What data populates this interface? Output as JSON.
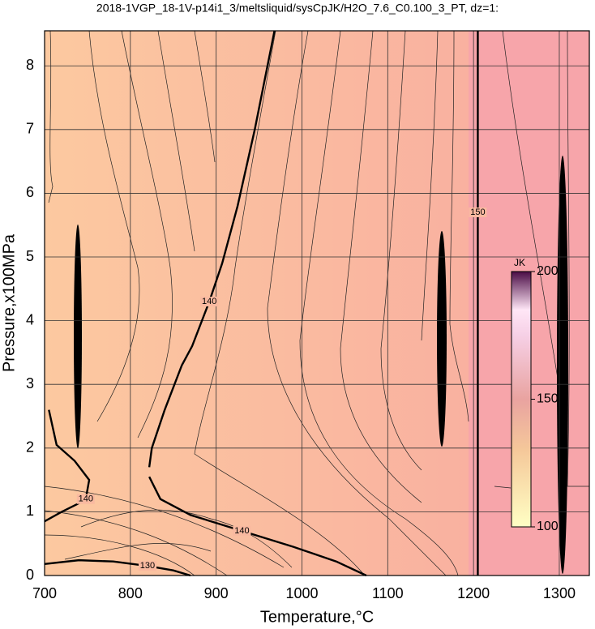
{
  "chart_data": {
    "type": "contour",
    "title": "2018-1VGP_18-1V-p14i1_3/meltsliquid/sysCpJK/H2O_7.6_C0.100_3_PT, dz=1:",
    "x_label": "Temperature,°C",
    "y_label": "Pressure,x100MPa",
    "xlim": [
      700,
      1335
    ],
    "ylim": [
      0,
      8.55
    ],
    "xticks": [
      700,
      800,
      900,
      1000,
      1100,
      1200,
      1300
    ],
    "yticks": [
      0,
      1,
      2,
      3,
      4,
      5,
      6,
      7,
      8
    ],
    "grid": true,
    "colorbar": {
      "label": "JK",
      "lim": [
        100,
        200
      ],
      "ticks": [
        100,
        150,
        200
      ]
    },
    "contours": [
      {
        "level": 140,
        "points": [
          [
            822,
            1.7
          ],
          [
            825,
            2.0
          ],
          [
            840,
            2.6
          ],
          [
            860,
            3.3
          ],
          [
            872,
            3.6
          ],
          [
            892,
            4.3
          ],
          [
            907,
            4.9
          ],
          [
            925,
            5.8
          ],
          [
            945,
            7.0
          ],
          [
            968,
            8.55
          ]
        ]
      },
      {
        "level": 140,
        "points": [
          [
            705,
            2.6
          ],
          [
            714,
            2.05
          ],
          [
            735,
            1.8
          ],
          [
            752,
            1.5
          ],
          [
            748,
            1.2
          ],
          [
            738,
            1.12
          ],
          [
            720,
            1.0
          ],
          [
            700,
            0.85
          ]
        ]
      },
      {
        "level": 140,
        "points": [
          [
            822,
            1.55
          ],
          [
            835,
            1.2
          ],
          [
            870,
            0.95
          ],
          [
            930,
            0.7
          ],
          [
            990,
            0.45
          ],
          [
            1040,
            0.22
          ],
          [
            1075,
            0
          ]
        ]
      },
      {
        "level": 130,
        "points": [
          [
            700,
            0.18
          ],
          [
            740,
            0.24
          ],
          [
            780,
            0.22
          ],
          [
            820,
            0.15
          ],
          [
            850,
            0.08
          ],
          [
            870,
            0
          ]
        ]
      },
      {
        "level": 150,
        "points": [
          [
            1205,
            0
          ],
          [
            1205,
            2.9
          ],
          [
            1205,
            5.7
          ],
          [
            1205,
            8.55
          ]
        ]
      }
    ]
  }
}
